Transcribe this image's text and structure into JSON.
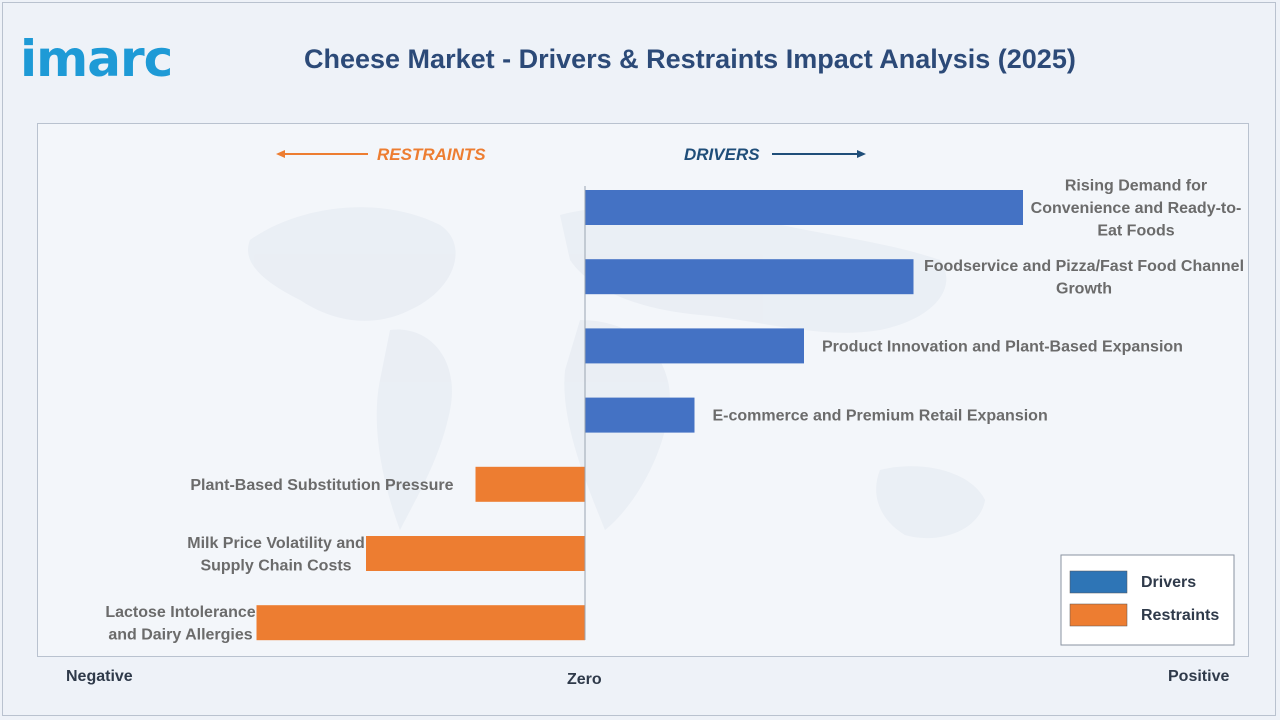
{
  "header": {
    "logo_text": "imarc",
    "title": "Cheese Market - Drivers & Restraints Impact Analysis (2025)"
  },
  "chart_data": {
    "type": "bar",
    "orientation": "horizontal-diverging",
    "title": "Cheese Market - Drivers & Restraints Impact Analysis (2025)",
    "direction_labels": {
      "restraints": "RESTRAINTS",
      "drivers": "DRIVERS"
    },
    "axis_labels": {
      "negative": "Negative",
      "zero": "Zero",
      "positive": "Positive"
    },
    "xlim": [
      -3,
      4
    ],
    "series": [
      {
        "name": "Drivers",
        "color": "#4472c4",
        "items": [
          {
            "label": "Rising Demand for Convenience and Ready-to-Eat Foods",
            "value": 4
          },
          {
            "label": "Foodservice and Pizza/Fast Food Channel Growth",
            "value": 3
          },
          {
            "label": "Product Innovation and Plant-Based Expansion",
            "value": 2
          },
          {
            "label": "E-commerce and Premium Retail Expansion",
            "value": 1
          }
        ]
      },
      {
        "name": "Restraints",
        "color": "#ed7d31",
        "items": [
          {
            "label": "Plant-Based Substitution Pressure",
            "value": -1
          },
          {
            "label": "Milk Price Volatility and Supply Chain Costs",
            "value": -2
          },
          {
            "label": "Lactose Intolerance and Dairy Allergies",
            "value": -3
          }
        ]
      }
    ],
    "legend": {
      "position": "bottom-right",
      "entries": [
        "Drivers",
        "Restraints"
      ]
    },
    "colors": {
      "drivers": "#4472c4",
      "restraints": "#ed7d31",
      "legend_drivers": "#2e75b6",
      "arrow_drivers": "#1f4e79"
    }
  }
}
